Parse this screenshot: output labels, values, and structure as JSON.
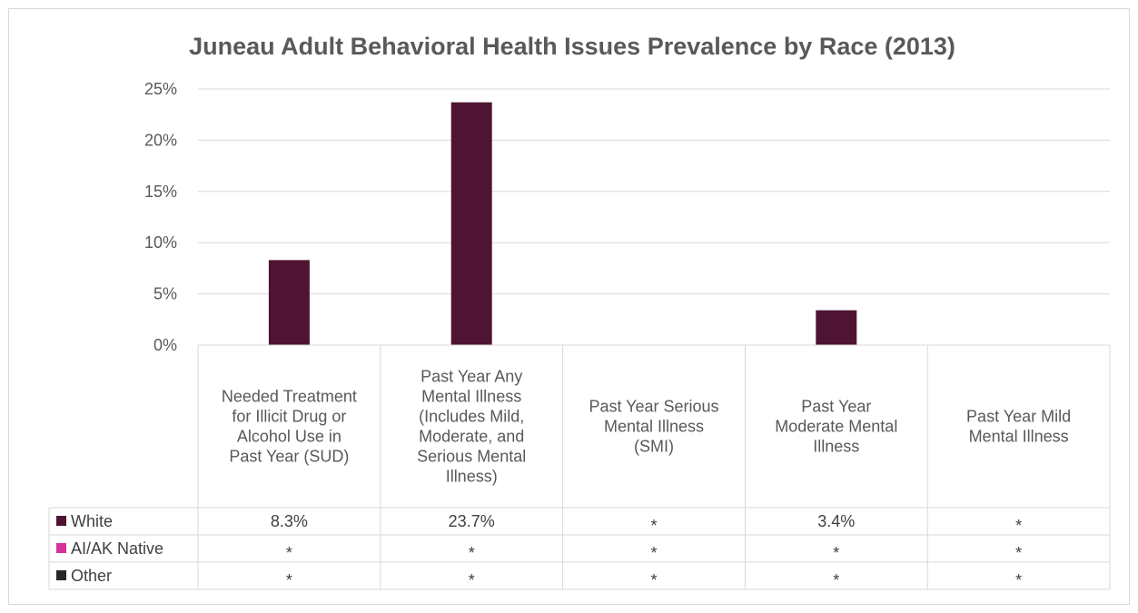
{
  "chart_data": {
    "type": "bar",
    "title": "Juneau Adult Behavioral Health Issues Prevalence by Race (2013)",
    "categories": [
      [
        "Needed Treatment",
        "for Illicit Drug or",
        "Alcohol Use in",
        "Past Year (SUD)"
      ],
      [
        "Past Year Any",
        "Mental Illness",
        "(Includes Mild,",
        "Moderate, and",
        "Serious Mental",
        "Illness)"
      ],
      [
        "Past Year Serious",
        "Mental Illness",
        "(SMI)"
      ],
      [
        "Past Year",
        "Moderate Mental",
        "Illness"
      ],
      [
        "Past Year Mild",
        "Mental Illness"
      ]
    ],
    "series": [
      {
        "name": "White",
        "color": "#4e1432",
        "values": [
          8.3,
          23.7,
          null,
          3.4,
          null
        ],
        "labels": [
          "8.3%",
          "23.7%",
          "*",
          "3.4%",
          "*"
        ]
      },
      {
        "name": "AI/AK Native",
        "color": "#d6339a",
        "values": [
          null,
          null,
          null,
          null,
          null
        ],
        "labels": [
          "*",
          "*",
          "*",
          "*",
          "*"
        ]
      },
      {
        "name": "Other",
        "color": "#262626",
        "values": [
          null,
          null,
          null,
          null,
          null
        ],
        "labels": [
          "*",
          "*",
          "*",
          "*",
          "*"
        ]
      }
    ],
    "yticks": [
      "0%",
      "5%",
      "10%",
      "15%",
      "20%",
      "25%"
    ],
    "ylim": [
      0,
      25
    ],
    "grid": true,
    "legend": "data-table"
  }
}
